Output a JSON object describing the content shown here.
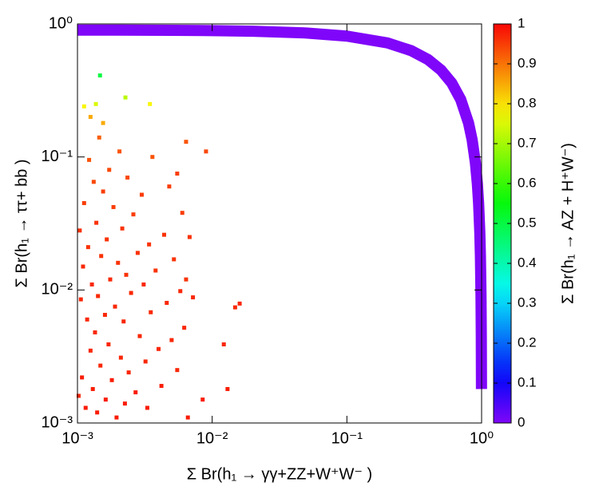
{
  "chart_data": {
    "type": "scatter",
    "xlabel": "Σ Br(h₁ → γγ+ZZ+W⁺W⁻ )",
    "ylabel": "Σ Br(h₁ → ττ+ bb )",
    "colorbar_label": "Σ Br(h₁ → AZ + H⁺W⁻)",
    "xscale": "log",
    "yscale": "log",
    "xlim": [
      0.001,
      1
    ],
    "ylim": [
      0.001,
      1
    ],
    "xticks": [
      {
        "value": 0.001,
        "label": "10⁻³"
      },
      {
        "value": 0.01,
        "label": "10⁻²"
      },
      {
        "value": 0.1,
        "label": "10⁻¹"
      },
      {
        "value": 1,
        "label": "10⁰"
      }
    ],
    "yticks": [
      {
        "value": 0.001,
        "label": "10⁻³"
      },
      {
        "value": 0.01,
        "label": "10⁻²"
      },
      {
        "value": 0.1,
        "label": "10⁻¹"
      },
      {
        "value": 1,
        "label": "10⁰"
      }
    ],
    "clim": [
      0,
      1
    ],
    "cticks": [
      0,
      0.1,
      0.2,
      0.3,
      0.4,
      0.5,
      0.6,
      0.7,
      0.8,
      0.9,
      1
    ],
    "series": [
      {
        "style": "band",
        "x": [
          0.001,
          0.002,
          0.005,
          0.01,
          0.02,
          0.05,
          0.1,
          0.2,
          0.3,
          0.4,
          0.5,
          0.6,
          0.7,
          0.8,
          0.85,
          0.9,
          0.93,
          0.95,
          0.97,
          0.98,
          0.99,
          0.995,
          0.998
        ],
        "values": [
          0.899,
          0.898,
          0.8955,
          0.891,
          0.882,
          0.855,
          0.81,
          0.72,
          0.63,
          0.54,
          0.45,
          0.36,
          0.27,
          0.18,
          0.135,
          0.09,
          0.063,
          0.045,
          0.027,
          0.018,
          0.009,
          0.0045,
          0.0018
        ],
        "z": [
          0,
          0,
          0,
          0,
          0,
          0,
          0,
          0,
          0,
          0,
          0,
          0,
          0,
          0,
          0,
          0,
          0,
          0,
          0,
          0,
          0,
          0,
          0
        ]
      },
      {
        "style": "points",
        "x": [
          0.00102,
          0.00104,
          0.00106,
          0.00108,
          0.0011,
          0.00112,
          0.00115,
          0.00118,
          0.0012,
          0.00122,
          0.00125,
          0.00128,
          0.0013,
          0.00132,
          0.00135,
          0.00138,
          0.0014,
          0.00142,
          0.00145,
          0.00148,
          0.0015,
          0.00155,
          0.0016,
          0.00162,
          0.00165,
          0.0017,
          0.00172,
          0.00175,
          0.0018,
          0.00185,
          0.0019,
          0.00195,
          0.002,
          0.00205,
          0.0021,
          0.00215,
          0.0022,
          0.00225,
          0.0023,
          0.00235,
          0.0024,
          0.0025,
          0.0026,
          0.0027,
          0.0028,
          0.0029,
          0.003,
          0.0031,
          0.0032,
          0.0033,
          0.0034,
          0.0035,
          0.0036,
          0.0038,
          0.004,
          0.0042,
          0.0044,
          0.0046,
          0.0048,
          0.005,
          0.0052,
          0.0055,
          0.0058,
          0.006,
          0.0062,
          0.0064,
          0.0066,
          0.0068,
          0.0072,
          0.0085,
          0.0122,
          0.013,
          0.0148,
          0.016,
          0.0064,
          0.009,
          0.0055,
          0.00147,
          0.00137,
          0.00112,
          0.00227,
          0.00345,
          0.00155,
          0.00125
        ],
        "values": [
          0.0016,
          0.028,
          0.0085,
          0.0022,
          0.015,
          0.045,
          0.0013,
          0.006,
          0.021,
          0.095,
          0.0035,
          0.011,
          0.0018,
          0.065,
          0.0048,
          0.032,
          0.0012,
          0.009,
          0.14,
          0.0027,
          0.018,
          0.055,
          0.0065,
          0.0015,
          0.024,
          0.0039,
          0.08,
          0.012,
          0.0021,
          0.042,
          0.0075,
          0.0011,
          0.016,
          0.11,
          0.0031,
          0.029,
          0.0058,
          0.0014,
          0.013,
          0.07,
          0.0024,
          0.0095,
          0.037,
          0.0017,
          0.019,
          0.0045,
          0.052,
          0.011,
          0.0029,
          0.0013,
          0.022,
          0.0068,
          0.1,
          0.014,
          0.0036,
          0.0019,
          0.026,
          0.008,
          0.06,
          0.0042,
          0.017,
          0.0025,
          0.0098,
          0.038,
          0.0052,
          0.012,
          0.0011,
          0.025,
          0.0088,
          0.0015,
          0.0039,
          0.0018,
          0.0074,
          0.0079,
          0.13,
          0.11,
          0.075,
          0.41,
          0.25,
          0.24,
          0.28,
          0.25,
          0.18,
          0.2
        ],
        "z": [
          0.97,
          0.96,
          0.97,
          0.98,
          0.97,
          0.95,
          0.98,
          0.97,
          0.96,
          0.93,
          0.97,
          0.97,
          0.98,
          0.94,
          0.97,
          0.96,
          0.98,
          0.97,
          0.92,
          0.97,
          0.96,
          0.95,
          0.97,
          0.98,
          0.96,
          0.97,
          0.94,
          0.97,
          0.98,
          0.95,
          0.97,
          0.98,
          0.96,
          0.93,
          0.97,
          0.96,
          0.97,
          0.98,
          0.96,
          0.94,
          0.97,
          0.97,
          0.95,
          0.98,
          0.96,
          0.97,
          0.95,
          0.97,
          0.97,
          0.98,
          0.96,
          0.97,
          0.93,
          0.96,
          0.97,
          0.98,
          0.96,
          0.97,
          0.95,
          0.97,
          0.96,
          0.97,
          0.97,
          0.95,
          0.97,
          0.96,
          0.98,
          0.96,
          0.97,
          0.98,
          0.97,
          0.98,
          0.97,
          0.97,
          0.93,
          0.94,
          0.95,
          0.5,
          0.75,
          0.78,
          0.72,
          0.78,
          0.85,
          0.85
        ]
      }
    ]
  }
}
